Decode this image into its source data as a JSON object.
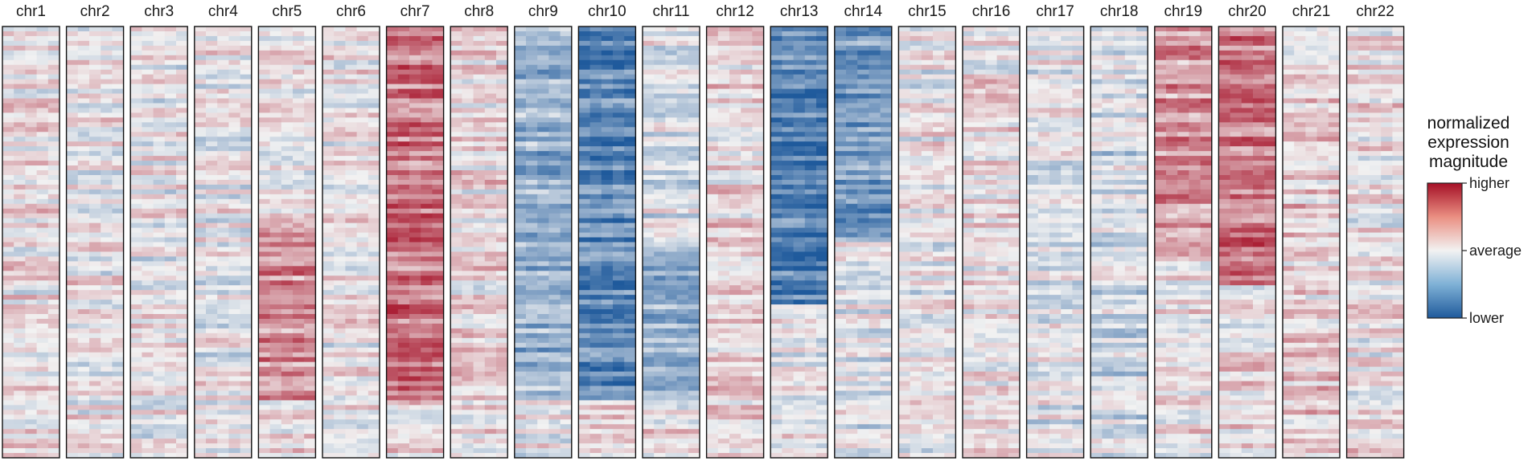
{
  "chart_data": {
    "type": "heatmap",
    "title": "",
    "xlabel": "",
    "ylabel": "",
    "grid": false,
    "panels": [
      "chr1",
      "chr2",
      "chr3",
      "chr4",
      "chr5",
      "chr6",
      "chr7",
      "chr8",
      "chr9",
      "chr10",
      "chr11",
      "chr12",
      "chr13",
      "chr14",
      "chr15",
      "chr16",
      "chr17",
      "chr18",
      "chr19",
      "chr20",
      "chr21",
      "chr22"
    ],
    "value_range": [
      -1,
      1
    ],
    "colorscale": {
      "low": "#1f5a9c",
      "mid": "#f2f2f2",
      "high": "#a50f26"
    },
    "cell_rows": 90,
    "region_profile_note": "",
    "regions": [
      {
        "panel": "chr1",
        "from": 0.0,
        "to": 1.0,
        "mean": 0.05
      },
      {
        "panel": "chr2",
        "from": 0.0,
        "to": 1.0,
        "mean": 0.02
      },
      {
        "panel": "chr3",
        "from": 0.0,
        "to": 1.0,
        "mean": -0.02
      },
      {
        "panel": "chr4",
        "from": 0.0,
        "to": 1.0,
        "mean": -0.03
      },
      {
        "panel": "chr5",
        "from": 0.0,
        "to": 0.45,
        "mean": 0.05
      },
      {
        "panel": "chr5",
        "from": 0.45,
        "to": 0.87,
        "mean": 0.45
      },
      {
        "panel": "chr5",
        "from": 0.87,
        "to": 1.0,
        "mean": 0.05
      },
      {
        "panel": "chr6",
        "from": 0.0,
        "to": 1.0,
        "mean": 0.0
      },
      {
        "panel": "chr7",
        "from": 0.0,
        "to": 0.87,
        "mean": 0.55
      },
      {
        "panel": "chr7",
        "from": 0.87,
        "to": 1.0,
        "mean": 0.08
      },
      {
        "panel": "chr8",
        "from": 0.0,
        "to": 1.0,
        "mean": 0.08
      },
      {
        "panel": "chr9",
        "from": 0.0,
        "to": 0.87,
        "mean": -0.45
      },
      {
        "panel": "chr9",
        "from": 0.87,
        "to": 1.0,
        "mean": 0.0
      },
      {
        "panel": "chr10",
        "from": 0.0,
        "to": 0.87,
        "mean": -0.7
      },
      {
        "panel": "chr10",
        "from": 0.87,
        "to": 1.0,
        "mean": 0.1
      },
      {
        "panel": "chr11",
        "from": 0.0,
        "to": 0.5,
        "mean": -0.1
      },
      {
        "panel": "chr11",
        "from": 0.5,
        "to": 0.87,
        "mean": -0.4
      },
      {
        "panel": "chr11",
        "from": 0.87,
        "to": 1.0,
        "mean": 0.05
      },
      {
        "panel": "chr12",
        "from": 0.0,
        "to": 1.0,
        "mean": 0.1
      },
      {
        "panel": "chr13",
        "from": 0.0,
        "to": 0.65,
        "mean": -0.75
      },
      {
        "panel": "chr13",
        "from": 0.65,
        "to": 1.0,
        "mean": -0.05
      },
      {
        "panel": "chr14",
        "from": 0.0,
        "to": 0.5,
        "mean": -0.6
      },
      {
        "panel": "chr14",
        "from": 0.5,
        "to": 1.0,
        "mean": -0.08
      },
      {
        "panel": "chr15",
        "from": 0.0,
        "to": 1.0,
        "mean": -0.03
      },
      {
        "panel": "chr16",
        "from": 0.0,
        "to": 1.0,
        "mean": 0.05
      },
      {
        "panel": "chr17",
        "from": 0.0,
        "to": 1.0,
        "mean": -0.05
      },
      {
        "panel": "chr18",
        "from": 0.0,
        "to": 1.0,
        "mean": -0.15
      },
      {
        "panel": "chr19",
        "from": 0.0,
        "to": 0.55,
        "mean": 0.4
      },
      {
        "panel": "chr19",
        "from": 0.55,
        "to": 1.0,
        "mean": 0.05
      },
      {
        "panel": "chr20",
        "from": 0.0,
        "to": 0.6,
        "mean": 0.55
      },
      {
        "panel": "chr20",
        "from": 0.6,
        "to": 1.0,
        "mean": 0.08
      },
      {
        "panel": "chr21",
        "from": 0.0,
        "to": 1.0,
        "mean": 0.15
      },
      {
        "panel": "chr22",
        "from": 0.0,
        "to": 1.0,
        "mean": 0.05
      }
    ],
    "legend": {
      "title": [
        "normalized",
        "expression",
        "magnitude"
      ],
      "ticks": [
        {
          "label": "higher",
          "value": 1
        },
        {
          "label": "average",
          "value": 0
        },
        {
          "label": "lower",
          "value": -1
        }
      ],
      "placement": "right"
    }
  }
}
